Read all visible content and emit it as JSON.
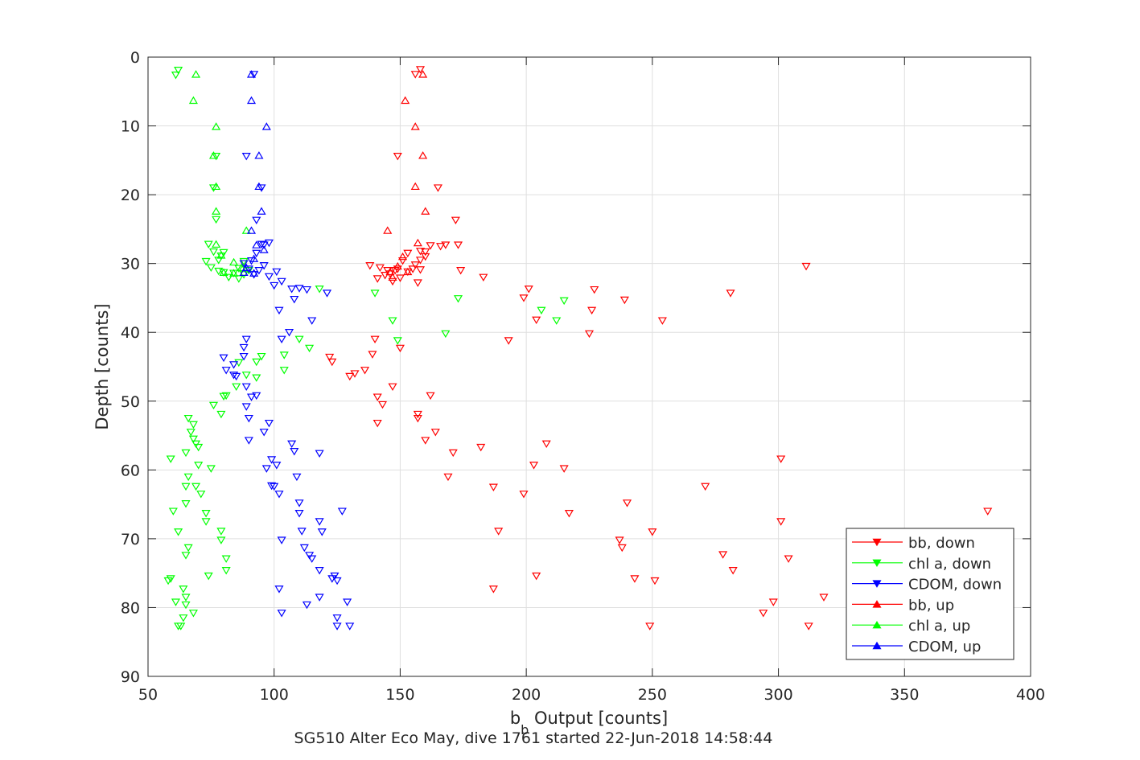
{
  "chart_data": {
    "type": "scatter",
    "title": "",
    "subtitle": "SG510 Alter Eco May, dive 1761 started 22-Jun-2018 14:58:44",
    "xlabel_main": "b",
    "xlabel_sub": "b",
    "xlabel_rest": " Output [counts]",
    "ylabel": "Depth [counts]",
    "xlim": [
      50,
      400
    ],
    "ylim": [
      0,
      90
    ],
    "y_reversed": true,
    "grid": true,
    "legend_position": "bottom-right",
    "xticks": [
      50,
      100,
      150,
      200,
      250,
      300,
      350,
      400
    ],
    "yticks": [
      0,
      10,
      20,
      30,
      40,
      50,
      60,
      70,
      80,
      90
    ],
    "series": [
      {
        "name": "bb, down",
        "color": "#ff0000",
        "marker": "triangle-down",
        "points": [
          [
            158,
            1.8
          ],
          [
            156,
            2.5
          ],
          [
            149,
            14.4
          ],
          [
            165,
            19
          ],
          [
            172,
            23.7
          ],
          [
            173,
            27.3
          ],
          [
            174,
            31
          ],
          [
            183,
            32
          ],
          [
            201,
            33.7
          ],
          [
            227,
            33.8
          ],
          [
            199,
            35
          ],
          [
            226,
            36.8
          ],
          [
            239,
            35.3
          ],
          [
            281,
            34.3
          ],
          [
            311,
            30.4
          ],
          [
            204,
            38.2
          ],
          [
            254,
            38.3
          ],
          [
            225,
            40.2
          ],
          [
            193,
            41.2
          ],
          [
            140,
            41
          ],
          [
            150,
            42.3
          ],
          [
            139,
            43.2
          ],
          [
            122,
            43.6
          ],
          [
            123,
            44.3
          ],
          [
            136,
            45.5
          ],
          [
            132,
            46
          ],
          [
            130,
            46.4
          ],
          [
            147,
            47.9
          ],
          [
            141,
            49.4
          ],
          [
            162,
            49.2
          ],
          [
            143,
            50.5
          ],
          [
            157,
            51.9
          ],
          [
            157,
            52.5
          ],
          [
            141,
            53.2
          ],
          [
            164,
            54.5
          ],
          [
            160,
            55.7
          ],
          [
            208,
            56.2
          ],
          [
            182,
            56.7
          ],
          [
            171,
            57.5
          ],
          [
            301,
            58.4
          ],
          [
            203,
            59.3
          ],
          [
            215,
            59.8
          ],
          [
            169,
            61
          ],
          [
            187,
            62.5
          ],
          [
            271,
            62.4
          ],
          [
            199,
            63.5
          ],
          [
            240,
            64.8
          ],
          [
            217,
            66.3
          ],
          [
            383,
            66
          ],
          [
            301,
            67.5
          ],
          [
            189,
            68.9
          ],
          [
            250,
            69
          ],
          [
            237,
            70.2
          ],
          [
            238,
            71.3
          ],
          [
            278,
            72.3
          ],
          [
            304,
            72.9
          ],
          [
            282,
            74.6
          ],
          [
            204,
            75.4
          ],
          [
            243,
            75.8
          ],
          [
            251,
            76.1
          ],
          [
            187,
            77.3
          ],
          [
            318,
            78.5
          ],
          [
            298,
            79.2
          ],
          [
            294,
            80.8
          ],
          [
            249,
            82.7
          ],
          [
            312,
            82.7
          ],
          [
            138,
            30.3
          ],
          [
            142,
            30.6
          ],
          [
            146,
            31.5
          ],
          [
            150,
            32.1
          ],
          [
            155,
            30.8
          ],
          [
            158,
            29.5
          ],
          [
            160,
            29
          ],
          [
            158,
            28.2
          ],
          [
            162,
            27.4
          ],
          [
            166,
            27.5
          ],
          [
            168,
            27.3
          ],
          [
            153,
            28.5
          ],
          [
            151,
            29.6
          ],
          [
            148,
            31
          ],
          [
            144,
            31.7
          ],
          [
            141,
            32.2
          ],
          [
            157,
            32.8
          ],
          [
            153,
            31.2
          ],
          [
            156,
            30.2
          ],
          [
            149,
            30.8
          ],
          [
            147,
            32.6
          ],
          [
            158,
            30.9
          ],
          [
            145,
            31
          ],
          [
            160,
            28.3
          ]
        ]
      },
      {
        "name": "chl a, down",
        "color": "#00ff00",
        "marker": "triangle-down",
        "points": [
          [
            61,
            2.6
          ],
          [
            62,
            1.9
          ],
          [
            77,
            14.4
          ],
          [
            76,
            19
          ],
          [
            77,
            23.6
          ],
          [
            74,
            27.2
          ],
          [
            76,
            28.3
          ],
          [
            80,
            28.4
          ],
          [
            79,
            28.9
          ],
          [
            78,
            29.5
          ],
          [
            73,
            29.7
          ],
          [
            75,
            30.6
          ],
          [
            78,
            31.1
          ],
          [
            80,
            31.3
          ],
          [
            82,
            32
          ],
          [
            84,
            31.4
          ],
          [
            86,
            30.7
          ],
          [
            88,
            31.6
          ],
          [
            86,
            32.2
          ],
          [
            90,
            31
          ],
          [
            88,
            29.7
          ],
          [
            118,
            33.7
          ],
          [
            140,
            34.3
          ],
          [
            173,
            35.1
          ],
          [
            206,
            36.8
          ],
          [
            215,
            35.4
          ],
          [
            212,
            38.3
          ],
          [
            147,
            38.3
          ],
          [
            168,
            40.2
          ],
          [
            110,
            41
          ],
          [
            149,
            41.2
          ],
          [
            114,
            42.3
          ],
          [
            104,
            43.3
          ],
          [
            95,
            43.5
          ],
          [
            93,
            44.3
          ],
          [
            86,
            44.4
          ],
          [
            104,
            45.5
          ],
          [
            89,
            46.2
          ],
          [
            93,
            46.6
          ],
          [
            85,
            47.9
          ],
          [
            80,
            49.3
          ],
          [
            81,
            49.2
          ],
          [
            76,
            50.6
          ],
          [
            79,
            51.9
          ],
          [
            66,
            52.5
          ],
          [
            68,
            53.4
          ],
          [
            67,
            54.5
          ],
          [
            68,
            55.5
          ],
          [
            69,
            56.2
          ],
          [
            70,
            56.7
          ],
          [
            65,
            57.5
          ],
          [
            59,
            58.4
          ],
          [
            70,
            59.3
          ],
          [
            75,
            59.8
          ],
          [
            66,
            61
          ],
          [
            69,
            62.4
          ],
          [
            65,
            62.4
          ],
          [
            71,
            63.5
          ],
          [
            65,
            64.9
          ],
          [
            73,
            66.3
          ],
          [
            60,
            66
          ],
          [
            73,
            67.5
          ],
          [
            79,
            68.9
          ],
          [
            62,
            69
          ],
          [
            79,
            70.2
          ],
          [
            66,
            71.3
          ],
          [
            65,
            72.4
          ],
          [
            81,
            72.9
          ],
          [
            81,
            74.6
          ],
          [
            74,
            75.4
          ],
          [
            59,
            75.8
          ],
          [
            58,
            76.1
          ],
          [
            64,
            77.3
          ],
          [
            65,
            78.5
          ],
          [
            61,
            79.2
          ],
          [
            65,
            79.6
          ],
          [
            68,
            80.8
          ],
          [
            64,
            81.5
          ],
          [
            63,
            82.7
          ],
          [
            62,
            82.7
          ]
        ]
      },
      {
        "name": "CDOM, down",
        "color": "#0000ff",
        "marker": "triangle-down",
        "points": [
          [
            92,
            2.5
          ],
          [
            89,
            14.4
          ],
          [
            95,
            19
          ],
          [
            93,
            23.7
          ],
          [
            95,
            27.2
          ],
          [
            98,
            27
          ],
          [
            96,
            27.3
          ],
          [
            93,
            28.5
          ],
          [
            91,
            29.6
          ],
          [
            88,
            30
          ],
          [
            90,
            30.8
          ],
          [
            92,
            31.6
          ],
          [
            94,
            31
          ],
          [
            96,
            30.3
          ],
          [
            98,
            31.9
          ],
          [
            101,
            31.2
          ],
          [
            103,
            32.6
          ],
          [
            100,
            33.2
          ],
          [
            107,
            33.7
          ],
          [
            110,
            33.6
          ],
          [
            113,
            33.8
          ],
          [
            121,
            34.3
          ],
          [
            108,
            35.2
          ],
          [
            102,
            36.8
          ],
          [
            115,
            38.3
          ],
          [
            106,
            40
          ],
          [
            103,
            41
          ],
          [
            89,
            41
          ],
          [
            88,
            42.2
          ],
          [
            80,
            43.7
          ],
          [
            88,
            43.5
          ],
          [
            84,
            44.7
          ],
          [
            81,
            45.5
          ],
          [
            85,
            46.4
          ],
          [
            84,
            46.2
          ],
          [
            89,
            47.9
          ],
          [
            91,
            49.4
          ],
          [
            93,
            49.2
          ],
          [
            89,
            50.8
          ],
          [
            90,
            52.5
          ],
          [
            98,
            53.2
          ],
          [
            96,
            54.5
          ],
          [
            90,
            55.7
          ],
          [
            107,
            56.2
          ],
          [
            108,
            57.3
          ],
          [
            118,
            57.6
          ],
          [
            99,
            58.5
          ],
          [
            97,
            59.8
          ],
          [
            101,
            59.3
          ],
          [
            109,
            61
          ],
          [
            99,
            62.3
          ],
          [
            100,
            62.4
          ],
          [
            102,
            63.5
          ],
          [
            110,
            64.8
          ],
          [
            110,
            66.3
          ],
          [
            127,
            66
          ],
          [
            118,
            67.5
          ],
          [
            111,
            68.9
          ],
          [
            119,
            69
          ],
          [
            103,
            70.2
          ],
          [
            112,
            71.3
          ],
          [
            114,
            72.4
          ],
          [
            115,
            72.9
          ],
          [
            118,
            74.6
          ],
          [
            124,
            75.4
          ],
          [
            123,
            75.8
          ],
          [
            125,
            76.1
          ],
          [
            102,
            77.3
          ],
          [
            118,
            78.5
          ],
          [
            129,
            79.2
          ],
          [
            113,
            79.6
          ],
          [
            103,
            80.8
          ],
          [
            125,
            81.5
          ],
          [
            125,
            82.7
          ],
          [
            130,
            82.7
          ]
        ]
      },
      {
        "name": "bb, up",
        "color": "#ff0000",
        "marker": "triangle-up",
        "points": [
          [
            159,
            2.5
          ],
          [
            152,
            6.3
          ],
          [
            156,
            10.1
          ],
          [
            159,
            14.3
          ],
          [
            156,
            18.8
          ],
          [
            160,
            22.4
          ],
          [
            145,
            25.2
          ],
          [
            157,
            27
          ],
          [
            151,
            29
          ],
          [
            149,
            30.4
          ],
          [
            153,
            31.2
          ],
          [
            146,
            31.2
          ],
          [
            147,
            32
          ]
        ]
      },
      {
        "name": "chl a, up",
        "color": "#00ff00",
        "marker": "triangle-up",
        "points": [
          [
            69,
            2.5
          ],
          [
            68,
            6.3
          ],
          [
            77,
            10.1
          ],
          [
            76,
            14.3
          ],
          [
            77,
            18.8
          ],
          [
            77,
            22.4
          ],
          [
            89,
            25.2
          ],
          [
            77,
            27.2
          ],
          [
            79,
            28.8
          ],
          [
            84,
            29.8
          ],
          [
            87,
            30.6
          ],
          [
            80,
            31.3
          ],
          [
            84,
            31.4
          ]
        ]
      },
      {
        "name": "CDOM, up",
        "color": "#0000ff",
        "marker": "triangle-up",
        "points": [
          [
            91,
            2.5
          ],
          [
            91,
            6.3
          ],
          [
            97,
            10.1
          ],
          [
            94,
            14.3
          ],
          [
            94,
            18.8
          ],
          [
            95,
            22.4
          ],
          [
            91,
            25.2
          ],
          [
            93,
            27.3
          ],
          [
            96,
            28
          ],
          [
            92,
            29.3
          ],
          [
            89,
            30.6
          ],
          [
            92,
            31.4
          ],
          [
            88,
            31.3
          ]
        ]
      }
    ]
  }
}
